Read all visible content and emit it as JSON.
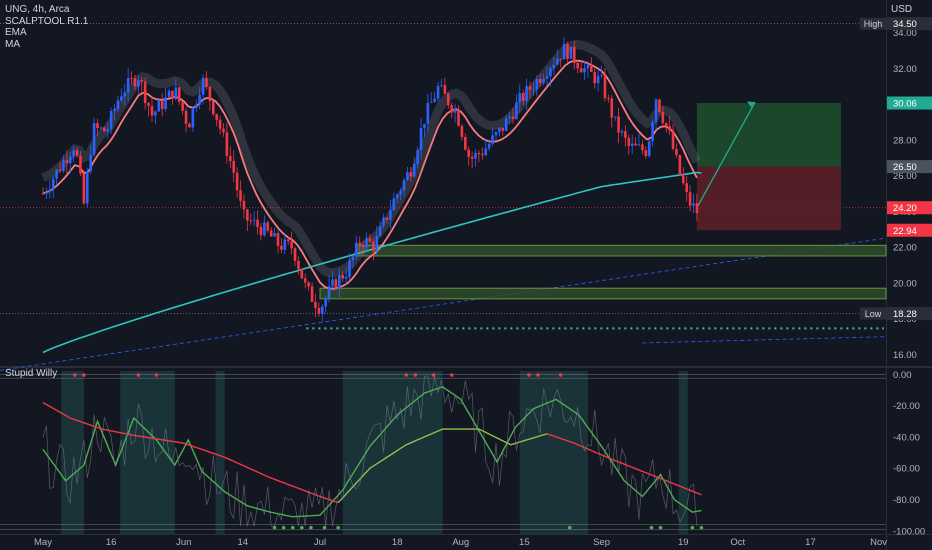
{
  "header": {
    "symbol_line": "UNG, 4h, Arca",
    "indicators": [
      "SCALPTOOL R1.1",
      "EMA",
      "MA"
    ],
    "currency": "USD"
  },
  "oscillator": {
    "title": "Stupid Willy"
  },
  "chart_data": [
    {
      "type": "candlestick",
      "title": "UNG, 4h, Arca",
      "ylim": [
        15.4,
        35.6
      ],
      "y_ticks": [
        "34.00",
        "32.00",
        "30.00",
        "28.00",
        "26.00",
        "24.00",
        "22.00",
        "20.00",
        "18.00",
        "16.00"
      ],
      "x_ticks": [
        "May",
        "16",
        "Jun",
        "14",
        "Jul",
        "18",
        "Aug",
        "15",
        "Sep",
        "19",
        "Oct",
        "17",
        "Nov"
      ],
      "close_path": [
        [
          "May 1",
          25.0
        ],
        [
          "May 4",
          26.2
        ],
        [
          "May 8",
          27.8
        ],
        [
          "May 10",
          24.4
        ],
        [
          "May 12",
          28.6
        ],
        [
          "May 15",
          28.5
        ],
        [
          "May 18",
          30.6
        ],
        [
          "May 22",
          31.6
        ],
        [
          "May 25",
          29.4
        ],
        [
          "May 30",
          30.8
        ],
        [
          "Jun 2",
          28.8
        ],
        [
          "Jun 5",
          31.4
        ],
        [
          "Jun 8",
          29.5
        ],
        [
          "Jun 12",
          26.2
        ],
        [
          "Jun 14",
          23.7
        ],
        [
          "Jun 19",
          22.9
        ],
        [
          "Jun 22",
          22.1
        ],
        [
          "Jun 25",
          22.0
        ],
        [
          "Jun 28",
          19.6
        ],
        [
          "Jul 1",
          18.6
        ],
        [
          "Jul 4",
          19.9
        ],
        [
          "Jul 7",
          20.7
        ],
        [
          "Jul 10",
          22.4
        ],
        [
          "Jul 13",
          22.1
        ],
        [
          "Jul 17",
          24.5
        ],
        [
          "Jul 21",
          26.4
        ],
        [
          "Jul 24",
          29.2
        ],
        [
          "Jul 27",
          30.9
        ],
        [
          "Jul 31",
          29.6
        ],
        [
          "Aug 3",
          26.9
        ],
        [
          "Aug 6",
          27.4
        ],
        [
          "Aug 10",
          28.6
        ],
        [
          "Aug 14",
          30.2
        ],
        [
          "Aug 18",
          31.4
        ],
        [
          "Aug 21",
          32.3
        ],
        [
          "Aug 24",
          33.1
        ],
        [
          "Aug 28",
          32.0
        ],
        [
          "Sep 1",
          31.2
        ],
        [
          "Sep 4",
          28.9
        ],
        [
          "Sep 7",
          27.6
        ],
        [
          "Sep 11",
          27.4
        ],
        [
          "Sep 13",
          30.4
        ],
        [
          "Sep 16",
          28.2
        ],
        [
          "Sep 18",
          26.3
        ],
        [
          "Sep 20",
          24.6
        ],
        [
          "Sep 22",
          24.0
        ]
      ],
      "price_labels": [
        {
          "text": "High",
          "value": "34.50",
          "price": 34.5,
          "color": "#2a2e39"
        },
        {
          "text": "",
          "value": "30.06",
          "price": 30.06,
          "color": "#22ab94"
        },
        {
          "text": "",
          "value": "26.50",
          "price": 26.5,
          "color": "#4c525e"
        },
        {
          "text": "",
          "value": "24.20",
          "price": 24.2,
          "color": "#f23645"
        },
        {
          "text": "",
          "value": "22.94",
          "price": 22.94,
          "color": "#f23645"
        },
        {
          "text": "Low",
          "value": "18.28",
          "price": 18.28,
          "color": "#2a2e39"
        }
      ],
      "trade_setup": {
        "entry": 24.2,
        "stop": 22.94,
        "target": 30.06,
        "start": "Sep 22",
        "end": "Oct 22"
      },
      "support_zones": [
        [
          21.5,
          22.1
        ],
        [
          19.1,
          19.7
        ]
      ],
      "colors": {
        "up": "#2962ff",
        "down": "#f23645",
        "ema": "#f77c80",
        "ma": "#2ec4c4",
        "band": "#787b86"
      }
    },
    {
      "type": "line",
      "title": "Stupid Willy",
      "ylim": [
        -102,
        4
      ],
      "y_ticks": [
        "0.00",
        "-20.00",
        "-40.00",
        "-60.00",
        "-80.00",
        "-100.00"
      ],
      "series": [
        {
          "color": "#4caf50",
          "values": [
            [
              "May 1",
              -48
            ],
            [
              "May 6",
              -68
            ],
            [
              "May 10",
              -58
            ],
            [
              "May 13",
              -30
            ],
            [
              "May 17",
              -58
            ],
            [
              "May 21",
              -28
            ],
            [
              "May 26",
              -42
            ],
            [
              "May 30",
              -58
            ],
            [
              "Jun 2",
              -42
            ],
            [
              "Jun 5",
              -62
            ],
            [
              "Jun 10",
              -75
            ],
            [
              "Jun 15",
              -84
            ],
            [
              "Jun 20",
              -88
            ],
            [
              "Jun 25",
              -91
            ],
            [
              "Jul 1",
              -90
            ],
            [
              "Jul 6",
              -74
            ],
            [
              "Jul 12",
              -46
            ],
            [
              "Jul 18",
              -26
            ],
            [
              "Jul 24",
              -12
            ],
            [
              "Jul 28",
              -8
            ],
            [
              "Aug 1",
              -16
            ],
            [
              "Aug 5",
              -36
            ],
            [
              "Aug 9",
              -56
            ],
            [
              "Aug 13",
              -34
            ],
            [
              "Aug 17",
              -22
            ],
            [
              "Aug 22",
              -16
            ],
            [
              "Aug 27",
              -26
            ],
            [
              "Sep 1",
              -46
            ],
            [
              "Sep 6",
              -68
            ],
            [
              "Sep 10",
              -78
            ],
            [
              "Sep 14",
              -64
            ],
            [
              "Sep 17",
              -80
            ],
            [
              "Sep 21",
              -88
            ],
            [
              "Sep 23",
              -87
            ]
          ]
        },
        {
          "color": "#f23645",
          "values": [
            [
              "May 1",
              -18
            ],
            [
              "May 7",
              -28
            ],
            [
              "May 14",
              -35
            ],
            [
              "May 21",
              -39
            ],
            [
              "Jun 1",
              -44
            ],
            [
              "Jun 10",
              -53
            ],
            [
              "Jun 20",
              -66
            ],
            [
              "Jul 1",
              -78
            ],
            [
              "Jul 5",
              -82
            ]
          ]
        },
        {
          "color": "#f23645",
          "values": [
            [
              "Aug 20",
              -38
            ],
            [
              "Aug 26",
              -44
            ],
            [
              "Sep 3",
              -54
            ],
            [
              "Sep 10",
              -62
            ],
            [
              "Sep 17",
              -70
            ],
            [
              "Sep 23",
              -77
            ]
          ]
        },
        {
          "color": "#8bc34a",
          "values": [
            [
              "Jul 5",
              -82
            ],
            [
              "Jul 12",
              -60
            ],
            [
              "Jul 20",
              -45
            ],
            [
              "Jul 28",
              -35
            ],
            [
              "Aug 5",
              -35
            ],
            [
              "Aug 12",
              -45
            ],
            [
              "Aug 20",
              -38
            ]
          ]
        }
      ]
    }
  ]
}
